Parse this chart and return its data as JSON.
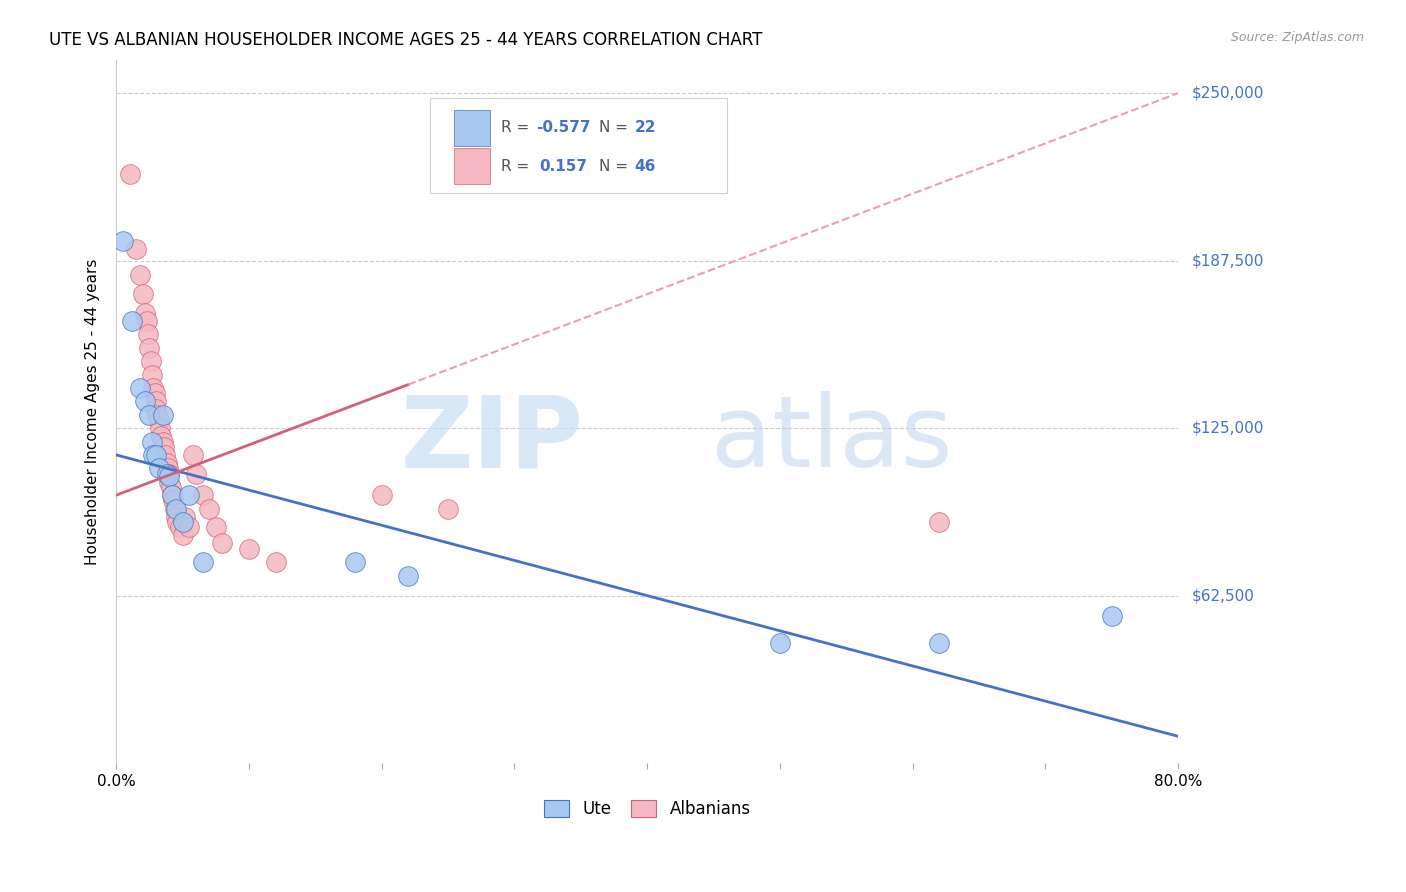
{
  "title": "UTE VS ALBANIAN HOUSEHOLDER INCOME AGES 25 - 44 YEARS CORRELATION CHART",
  "source": "Source: ZipAtlas.com",
  "ylabel": "Householder Income Ages 25 - 44 years",
  "xlim": [
    0.0,
    0.8
  ],
  "ylim": [
    0,
    262500
  ],
  "ytick_vals": [
    0,
    62500,
    125000,
    187500,
    250000
  ],
  "ytick_labels": [
    "",
    "$62,500",
    "$125,000",
    "$187,500",
    "$250,000"
  ],
  "xticks": [
    0.0,
    0.1,
    0.2,
    0.3,
    0.4,
    0.5,
    0.6,
    0.7,
    0.8
  ],
  "xtick_labels": [
    "0.0%",
    "",
    "",
    "",
    "",
    "",
    "",
    "",
    "80.0%"
  ],
  "ute_color": "#a8c8f0",
  "albanian_color": "#f5b8c0",
  "ute_line_color": "#4472c4",
  "albanian_line_color": "#d4607a",
  "albanian_dash_color": "#e8a0b0",
  "ute_R": -0.577,
  "ute_N": 22,
  "albanian_R": 0.157,
  "albanian_N": 46,
  "watermark_zip_color": "#c8dff5",
  "watermark_atlas_color": "#b8d0ee",
  "ute_x": [
    0.005,
    0.012,
    0.018,
    0.022,
    0.025,
    0.027,
    0.028,
    0.03,
    0.032,
    0.035,
    0.038,
    0.04,
    0.042,
    0.045,
    0.05,
    0.055,
    0.065,
    0.18,
    0.22,
    0.5,
    0.62,
    0.75
  ],
  "ute_y": [
    195000,
    165000,
    140000,
    135000,
    130000,
    120000,
    115000,
    115000,
    110000,
    130000,
    108000,
    107000,
    100000,
    95000,
    90000,
    100000,
    75000,
    75000,
    70000,
    45000,
    45000,
    55000
  ],
  "albanian_x": [
    0.01,
    0.015,
    0.018,
    0.02,
    0.022,
    0.023,
    0.024,
    0.025,
    0.026,
    0.027,
    0.028,
    0.029,
    0.03,
    0.03,
    0.031,
    0.032,
    0.033,
    0.034,
    0.035,
    0.036,
    0.037,
    0.038,
    0.039,
    0.04,
    0.04,
    0.041,
    0.042,
    0.043,
    0.044,
    0.045,
    0.046,
    0.048,
    0.05,
    0.052,
    0.055,
    0.058,
    0.06,
    0.065,
    0.07,
    0.075,
    0.08,
    0.1,
    0.12,
    0.2,
    0.25,
    0.62
  ],
  "albanian_y": [
    220000,
    192000,
    182000,
    175000,
    168000,
    165000,
    160000,
    155000,
    150000,
    145000,
    140000,
    138000,
    135000,
    132000,
    130000,
    128000,
    125000,
    122000,
    120000,
    118000,
    115000,
    112000,
    110000,
    108000,
    105000,
    103000,
    100000,
    98000,
    95000,
    92000,
    90000,
    88000,
    85000,
    92000,
    88000,
    115000,
    108000,
    100000,
    95000,
    88000,
    82000,
    80000,
    75000,
    100000,
    95000,
    90000
  ]
}
